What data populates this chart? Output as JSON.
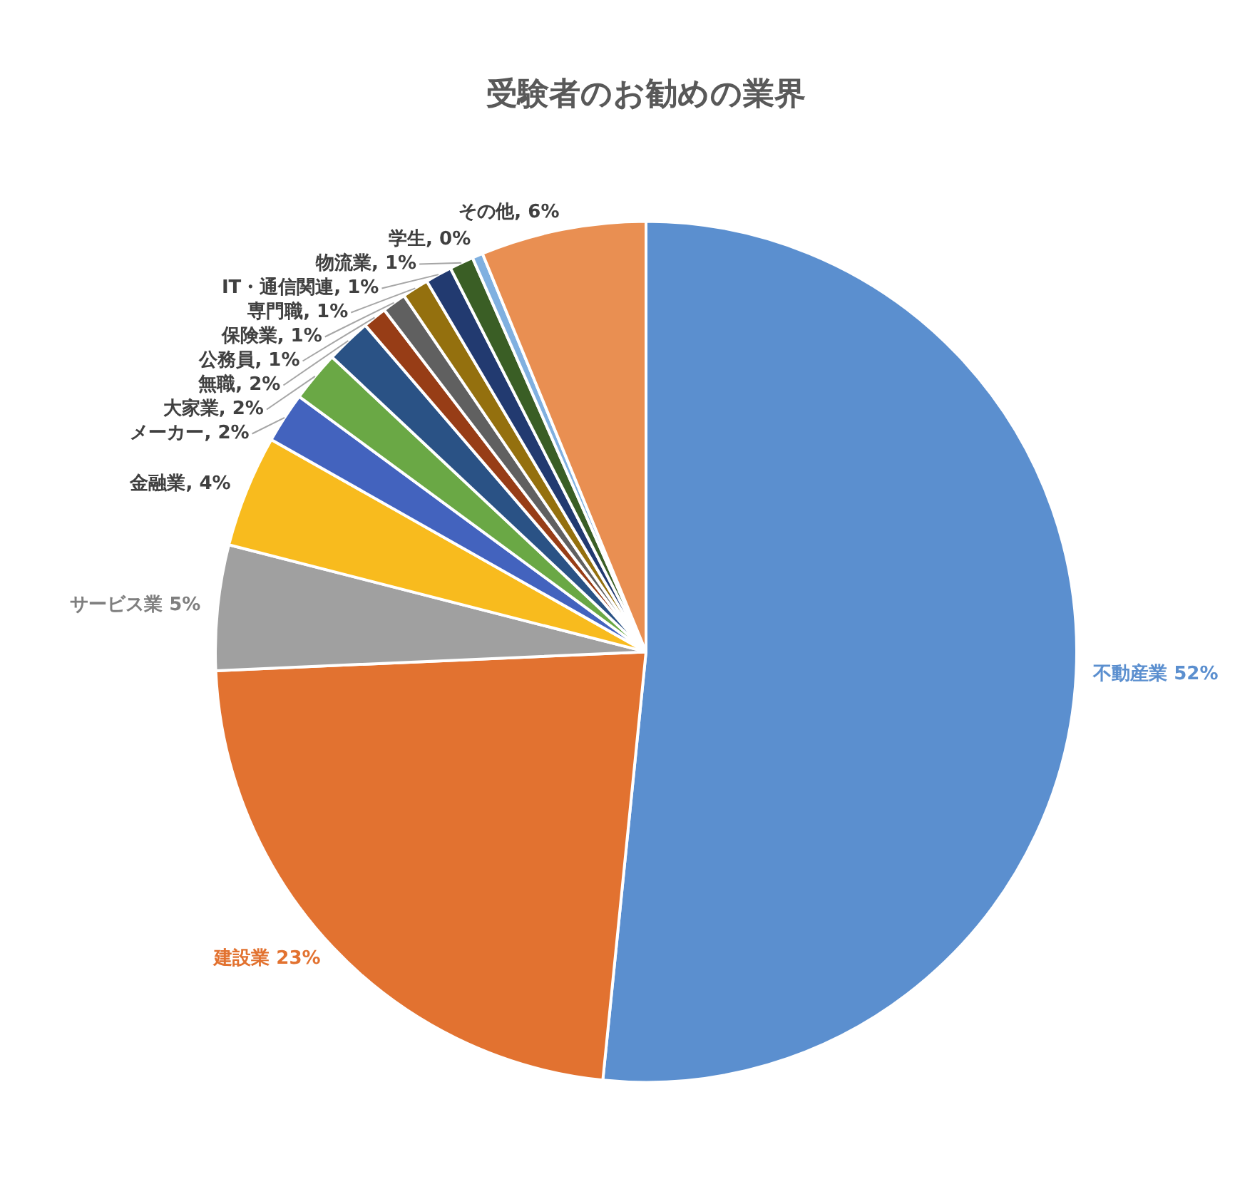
{
  "chart_data": {
    "type": "pie",
    "title": "受験者のお勧めの業界",
    "categories": [
      "不動産業",
      "建設業",
      "サービス業",
      "金融業",
      "メーカー",
      "大家業",
      "無職",
      "公務員",
      "保険業",
      "専門職",
      "IT・通信関連",
      "物流業",
      "学生",
      "その他"
    ],
    "values": [
      51.6,
      22.7,
      4.7,
      4.2,
      1.9,
      1.9,
      1.7,
      0.9,
      0.9,
      1.0,
      1.0,
      0.9,
      0.4,
      6.2
    ],
    "value_labels": [
      " 52%",
      " 23%",
      " 5%",
      ", 4%",
      ", 2%",
      ", 2%",
      ", 2%",
      ", 1%",
      ", 1%",
      ", 1%",
      ", 1%",
      ", 1%",
      ", 0%",
      ", 6%"
    ],
    "colors": [
      "#5b8fcf",
      "#e27230",
      "#a0a0a0",
      "#f8bb1e",
      "#4363be",
      "#6aa845",
      "#2a5285",
      "#973d16",
      "#606060",
      "#94700e",
      "#223a70",
      "#3a5e25",
      "#80b0e0",
      "#e98f52"
    ],
    "legend": false
  }
}
